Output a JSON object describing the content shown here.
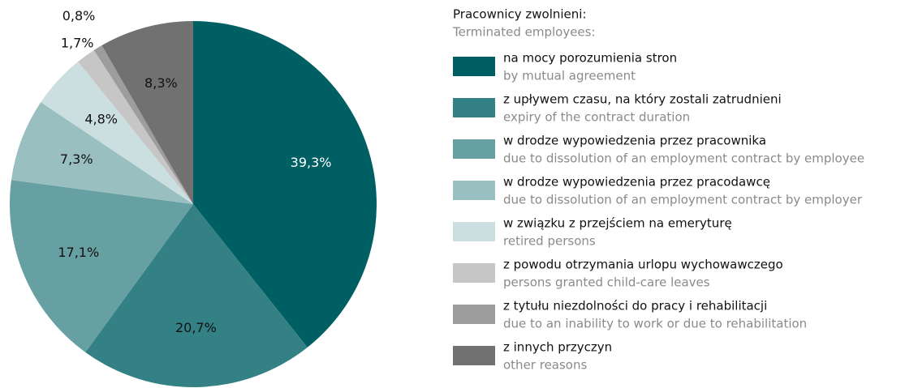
{
  "chart_data": {
    "type": "pie",
    "legend_title": "Pracownicy zwolnieni:",
    "legend_subtitle": "Terminated employees:",
    "categories": [
      "na mocy porozumienia stron",
      "z upływem czasu, na który zostali zatrudnieni",
      "w drodze wypowiedzenia przez pracownika",
      "w drodze wypowiedzenia przez pracodawcę",
      "w związku z przejściem na emeryturę",
      "z powodu otrzymania urlopu wychowawczego",
      "z tytułu niezdolności do pracy i rehabilitacji",
      "z innych przyczyn"
    ],
    "categories_en": [
      "by mutual agreement",
      "expiry of the contract duration",
      "due to dissolution of an employment contract by employee",
      "due to dissolution of an employment contract by employer",
      "retired persons",
      "persons granted child-care leaves",
      "due to an inability to work or due to rehabilitation",
      "other reasons"
    ],
    "values": [
      39.3,
      20.7,
      17.1,
      7.3,
      4.8,
      1.7,
      0.8,
      8.3
    ],
    "value_labels": [
      "39,3%",
      "20,7%",
      "17,1%",
      "7,3%",
      "4,8%",
      "1,7%",
      "0,8%",
      "8,3%"
    ],
    "colors": [
      "#005f63",
      "#338185",
      "#66a0a2",
      "#99bfc1",
      "#ccdfe0",
      "#c6c6c6",
      "#9d9d9d",
      "#717171"
    ],
    "legend": "right"
  }
}
